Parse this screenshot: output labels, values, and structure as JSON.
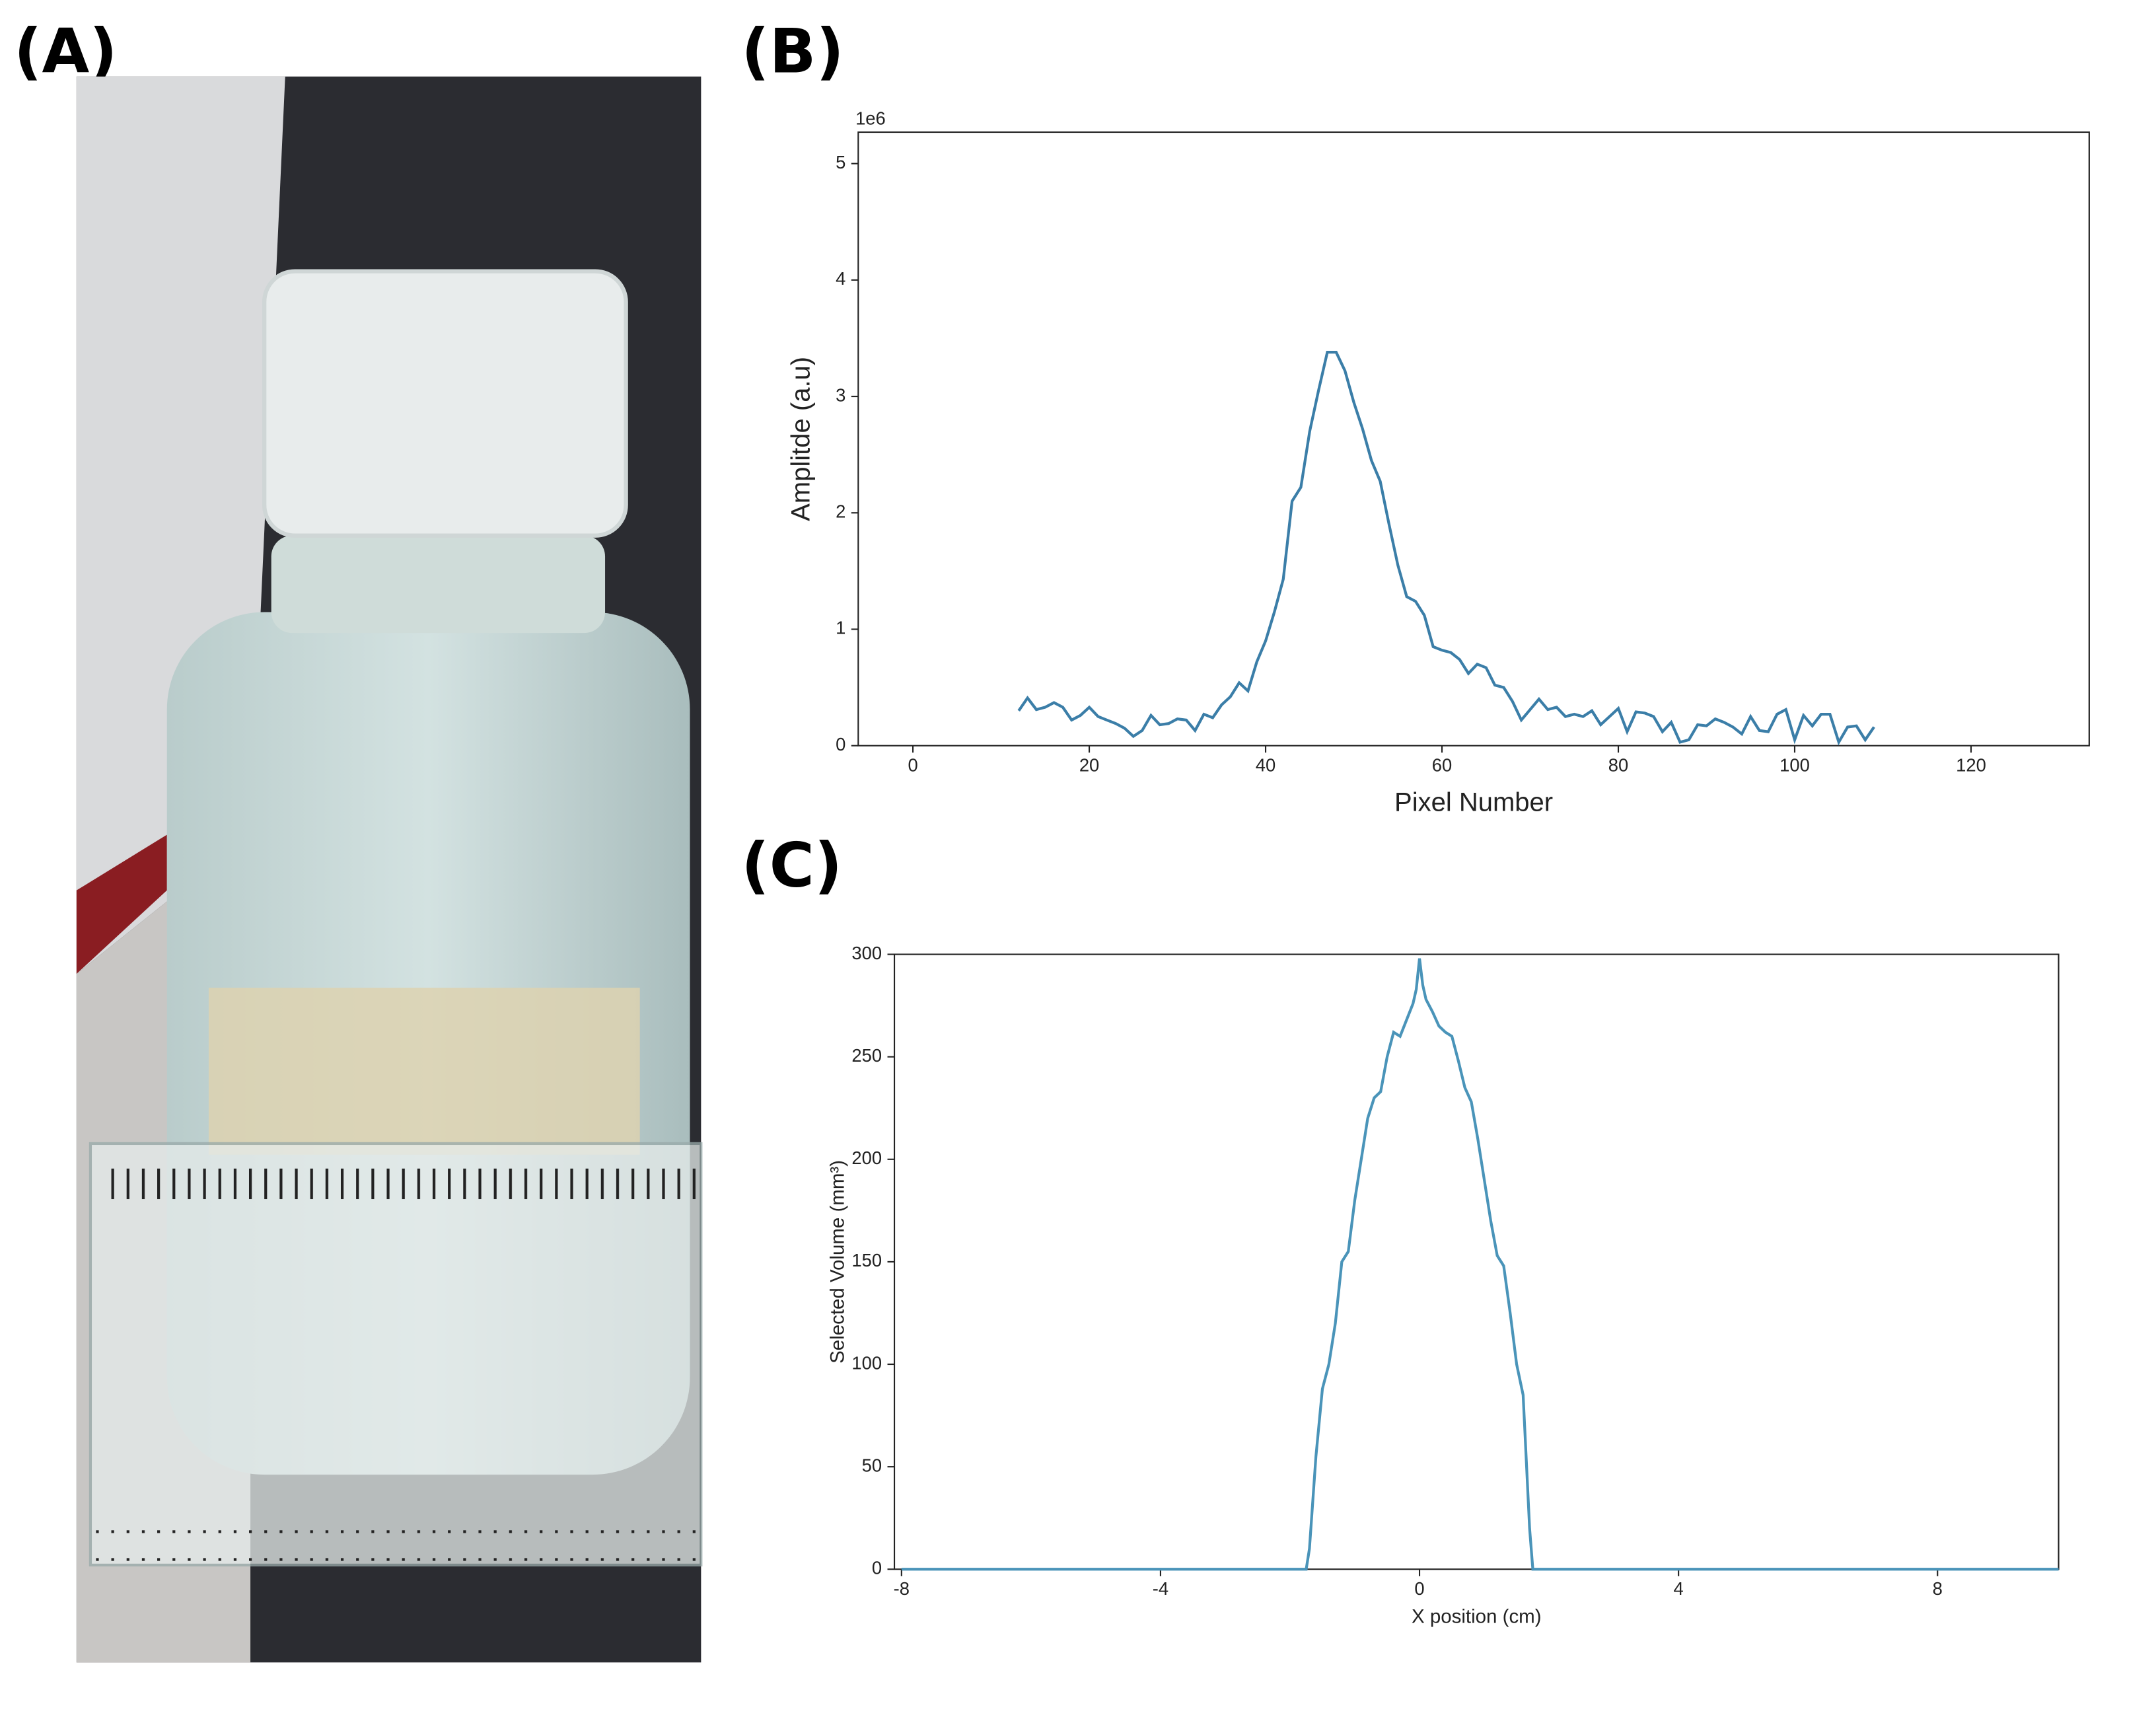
{
  "panel_labels": [
    "(A)",
    "(B)",
    "(C)"
  ],
  "chart_data": [
    {
      "type": "line",
      "offset_label": "1e6",
      "x_label": "Pixel Number",
      "y_label": "Amplitde (a.u)",
      "color": "#3b7ea8",
      "xlim": [
        -6.2,
        133.4
      ],
      "ylim": [
        0,
        5.27
      ],
      "xticks": [
        0,
        20,
        40,
        60,
        80,
        100,
        120
      ],
      "yticks": [
        0,
        1,
        2,
        3,
        4,
        5
      ],
      "x": [
        12,
        13,
        14,
        15,
        16,
        17,
        18,
        19,
        20,
        21,
        22,
        23,
        24,
        25,
        26,
        27,
        28,
        29,
        30,
        31,
        32,
        33,
        34,
        35,
        36,
        37,
        38,
        39,
        40,
        41,
        42,
        43,
        44,
        45,
        46,
        47,
        48,
        49,
        50,
        51,
        52,
        53,
        54,
        55,
        56,
        57,
        58,
        59,
        60,
        61,
        62,
        63,
        64,
        65,
        66,
        67,
        68,
        69,
        70,
        71,
        72,
        73,
        74,
        75,
        76,
        77,
        78,
        79,
        80,
        81,
        82,
        83,
        84,
        85,
        86,
        87,
        88,
        89,
        90,
        91,
        92,
        93,
        94,
        95,
        96,
        97,
        98,
        99,
        100,
        101,
        102,
        103,
        104,
        105,
        106,
        107,
        108,
        109
      ],
      "values": [
        0.3,
        0.41,
        0.31,
        0.33,
        0.37,
        0.33,
        0.22,
        0.26,
        0.33,
        0.25,
        0.22,
        0.19,
        0.15,
        0.08,
        0.13,
        0.26,
        0.18,
        0.19,
        0.23,
        0.22,
        0.13,
        0.27,
        0.24,
        0.35,
        0.42,
        0.54,
        0.47,
        0.72,
        0.9,
        1.15,
        1.43,
        2.1,
        2.22,
        2.7,
        3.05,
        3.38,
        3.38,
        3.22,
        2.95,
        2.72,
        2.45,
        2.27,
        1.9,
        1.55,
        1.28,
        1.24,
        1.12,
        0.85,
        0.82,
        0.8,
        0.74,
        0.62,
        0.7,
        0.67,
        0.52,
        0.5,
        0.38,
        0.22,
        0.31,
        0.4,
        0.31,
        0.33,
        0.25,
        0.27,
        0.25,
        0.3,
        0.18,
        0.25,
        0.32,
        0.12,
        0.29,
        0.28,
        0.25,
        0.12,
        0.2,
        0.03,
        0.05,
        0.18,
        0.17,
        0.23,
        0.2,
        0.16,
        0.1,
        0.25,
        0.13,
        0.12,
        0.27,
        0.31,
        0.05,
        0.26,
        0.17,
        0.27,
        0.27,
        0.03,
        0.16,
        0.17,
        0.05,
        0.16
      ]
    },
    {
      "type": "line",
      "x_label": "X position (cm)",
      "y_label": "Selected Volume (mm³)",
      "color": "#4a94b9",
      "xlim": [
        -8.11,
        9.87
      ],
      "ylim": [
        0,
        300
      ],
      "xticks": [
        -8,
        -4,
        0,
        4,
        8
      ],
      "yticks": [
        0,
        50,
        100,
        150,
        200,
        250,
        300
      ],
      "x": [
        -8,
        -1.75,
        -1.7,
        -1.6,
        -1.5,
        -1.4,
        -1.3,
        -1.2,
        -1.1,
        -1.0,
        -0.9,
        -0.8,
        -0.7,
        -0.6,
        -0.5,
        -0.4,
        -0.3,
        -0.2,
        -0.1,
        -0.05,
        0,
        0.05,
        0.1,
        0.2,
        0.3,
        0.4,
        0.5,
        0.6,
        0.7,
        0.8,
        0.9,
        1.0,
        1.1,
        1.2,
        1.3,
        1.4,
        1.5,
        1.6,
        1.7,
        1.75,
        9.87
      ],
      "values": [
        0,
        0,
        10,
        55,
        88,
        100,
        120,
        150,
        155,
        180,
        200,
        220,
        230,
        233,
        250,
        262,
        260,
        268,
        276,
        283,
        298,
        285,
        278,
        272,
        265,
        262,
        260,
        248,
        235,
        228,
        210,
        190,
        170,
        153,
        148,
        125,
        100,
        85,
        20,
        0,
        0
      ]
    }
  ]
}
